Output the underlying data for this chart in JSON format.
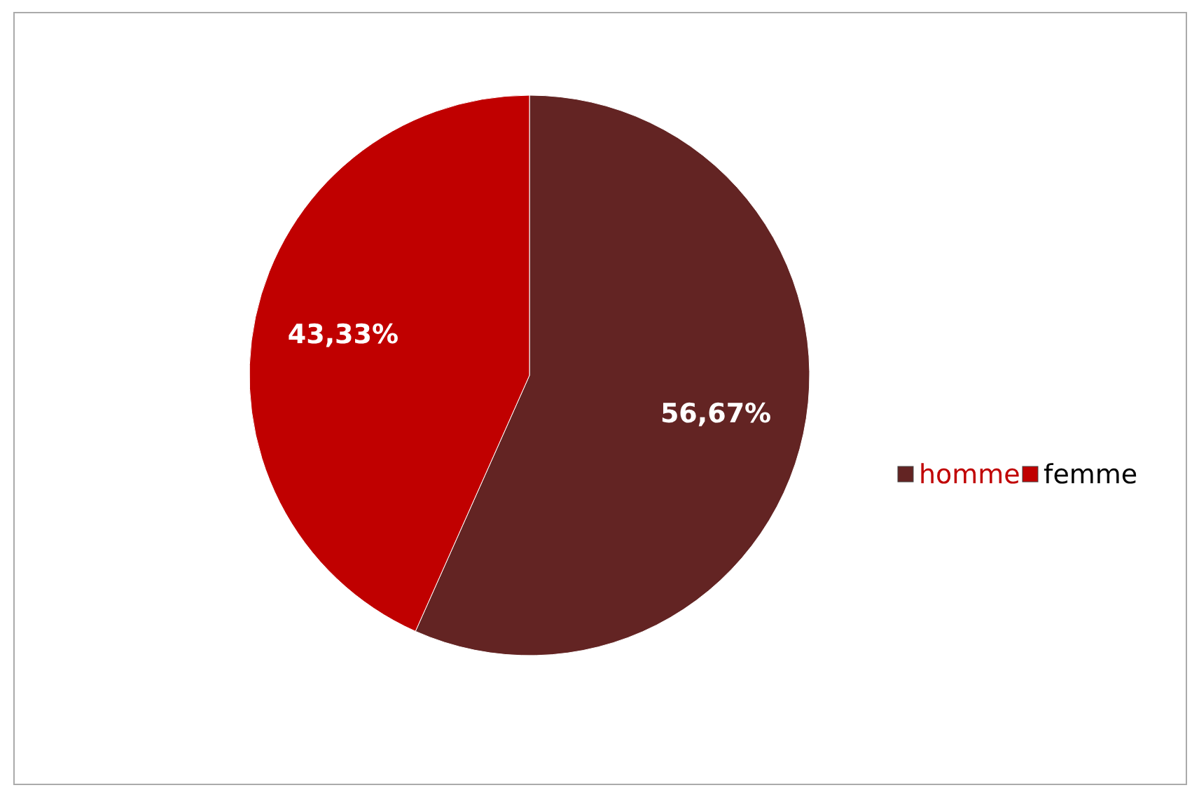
{
  "chart_data": {
    "type": "pie",
    "categories": [
      "homme",
      "femme"
    ],
    "values": [
      56.67,
      43.33
    ],
    "colors": [
      "#632423",
      "#c00000"
    ],
    "value_labels": [
      "56,67%",
      "43,33%"
    ],
    "legend": "right"
  }
}
